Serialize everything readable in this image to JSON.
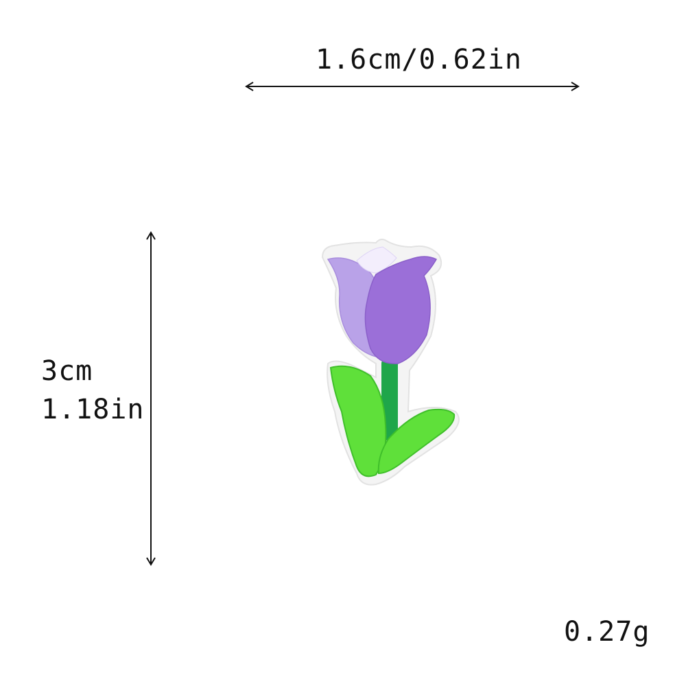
{
  "measurements": {
    "width": "1.6cm/0.62in",
    "height_cm": "3cm",
    "height_in": "1.18in",
    "weight": "0.27g"
  },
  "product": {
    "icon": "tulip-patch-icon",
    "colors": {
      "petal_light": "#b9a2e8",
      "petal_dark": "#9b6fd8",
      "petal_tip": "#f3eefc",
      "stem": "#1fa64a",
      "leaf": "#5fe03a",
      "leaf_dark": "#3fbf2a",
      "backing": "#f4f4f4"
    }
  }
}
